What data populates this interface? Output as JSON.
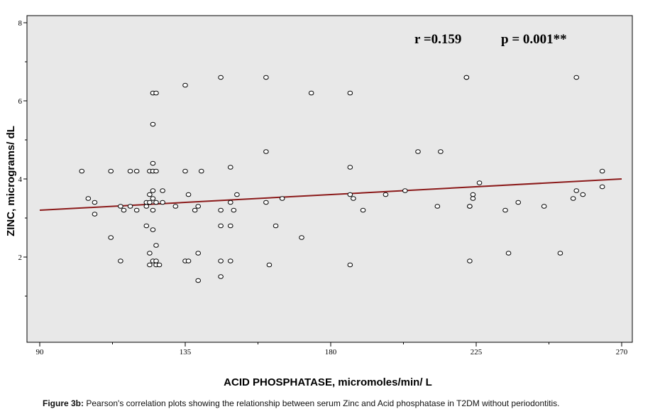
{
  "chart_data": {
    "type": "scatter",
    "title": "",
    "xlabel": "ACID PHOSPHATASE, micromoles/min/ L",
    "ylabel": "ZINC, micrograms/ dL",
    "xlim": [
      90,
      270
    ],
    "ylim": [
      0,
      8
    ],
    "x_ticks": [
      "90",
      "135",
      "180",
      "225",
      "270"
    ],
    "y_ticks": [
      "2",
      "4",
      "6",
      "8"
    ],
    "grid": false,
    "annotations": {
      "r": "r =0.159",
      "p": "p = 0.001**"
    },
    "fit_line": {
      "x": [
        90,
        270
      ],
      "y": [
        3.2,
        4.0
      ]
    },
    "colors": {
      "plot_background": "#e8e8e8",
      "fit_line": "#8b1a1a",
      "marker_edge": "#000000",
      "marker_fill": "#ffffff"
    },
    "points": [
      [
        103,
        4.2
      ],
      [
        105,
        3.5
      ],
      [
        107,
        3.4
      ],
      [
        107,
        3.1
      ],
      [
        112,
        4.2
      ],
      [
        112,
        2.5
      ],
      [
        115,
        3.3
      ],
      [
        115,
        1.9
      ],
      [
        116,
        3.2
      ],
      [
        118,
        4.2
      ],
      [
        118,
        3.3
      ],
      [
        120,
        4.2
      ],
      [
        120,
        3.2
      ],
      [
        123,
        2.8
      ],
      [
        123,
        3.3
      ],
      [
        123,
        3.4
      ],
      [
        124,
        4.2
      ],
      [
        124,
        3.6
      ],
      [
        124,
        3.4
      ],
      [
        124,
        2.1
      ],
      [
        124,
        1.8
      ],
      [
        125,
        6.2
      ],
      [
        125,
        5.4
      ],
      [
        125,
        4.4
      ],
      [
        125,
        4.2
      ],
      [
        125,
        3.7
      ],
      [
        125,
        3.5
      ],
      [
        125,
        3.2
      ],
      [
        125,
        2.7
      ],
      [
        125,
        1.9
      ],
      [
        126,
        6.2
      ],
      [
        126,
        4.2
      ],
      [
        126,
        3.4
      ],
      [
        126,
        2.3
      ],
      [
        126,
        1.9
      ],
      [
        126,
        1.8
      ],
      [
        127,
        1.8
      ],
      [
        128,
        3.7
      ],
      [
        128,
        3.4
      ],
      [
        132,
        3.3
      ],
      [
        135,
        6.4
      ],
      [
        135,
        4.2
      ],
      [
        135,
        1.9
      ],
      [
        136,
        3.6
      ],
      [
        136,
        1.9
      ],
      [
        138,
        3.2
      ],
      [
        139,
        3.3
      ],
      [
        139,
        2.1
      ],
      [
        139,
        1.4
      ],
      [
        140,
        4.2
      ],
      [
        146,
        6.6
      ],
      [
        146,
        3.2
      ],
      [
        146,
        2.8
      ],
      [
        146,
        1.9
      ],
      [
        146,
        1.5
      ],
      [
        149,
        4.3
      ],
      [
        149,
        3.4
      ],
      [
        149,
        2.8
      ],
      [
        149,
        1.9
      ],
      [
        150,
        3.2
      ],
      [
        151,
        3.6
      ],
      [
        160,
        6.6
      ],
      [
        160,
        4.7
      ],
      [
        160,
        3.4
      ],
      [
        161,
        1.8
      ],
      [
        163,
        2.8
      ],
      [
        165,
        3.5
      ],
      [
        171,
        2.5
      ],
      [
        174,
        6.2
      ],
      [
        186,
        6.2
      ],
      [
        186,
        4.3
      ],
      [
        186,
        3.6
      ],
      [
        186,
        1.8
      ],
      [
        187,
        3.5
      ],
      [
        190,
        3.2
      ],
      [
        197,
        3.6
      ],
      [
        203,
        3.7
      ],
      [
        207,
        4.7
      ],
      [
        213,
        3.3
      ],
      [
        214,
        4.7
      ],
      [
        222,
        6.6
      ],
      [
        222,
        6.6
      ],
      [
        223,
        3.3
      ],
      [
        223,
        3.3
      ],
      [
        223,
        1.9
      ],
      [
        224,
        3.6
      ],
      [
        224,
        3.5
      ],
      [
        226,
        3.9
      ],
      [
        234,
        3.2
      ],
      [
        235,
        2.1
      ],
      [
        238,
        3.4
      ],
      [
        246,
        3.3
      ],
      [
        251,
        2.1
      ],
      [
        255,
        3.5
      ],
      [
        256,
        6.6
      ],
      [
        256,
        3.7
      ],
      [
        258,
        3.6
      ],
      [
        264,
        4.2
      ],
      [
        264,
        3.8
      ]
    ]
  },
  "caption": {
    "label": "Figure 3b:",
    "text": " Pearson's correlation plots showing the relationship between serum Zinc and Acid phosphatase in T2DM without periodontitis."
  }
}
